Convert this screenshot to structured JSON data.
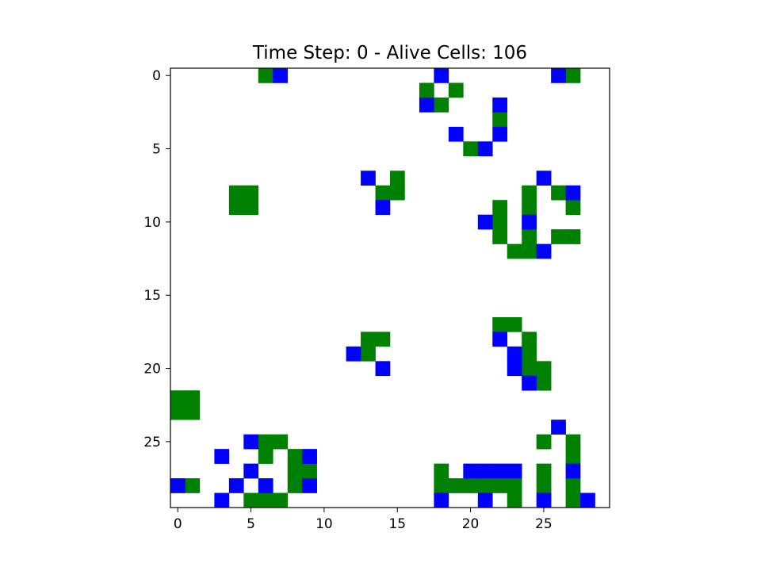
{
  "chart_data": {
    "type": "heatmap",
    "title": "Time Step: 0 - Alive Cells: 106",
    "grid_size": 30,
    "xlim": [
      -0.5,
      29.5
    ],
    "ylim": [
      29.5,
      -0.5
    ],
    "x_ticks": [
      0,
      5,
      10,
      15,
      20,
      25
    ],
    "y_ticks": [
      0,
      5,
      10,
      15,
      20,
      25
    ],
    "grid": false,
    "colors": {
      "background": "#ffffff",
      "green": "#008000",
      "blue": "#0000ff"
    },
    "cells": {
      "green": [
        [
          0,
          6
        ],
        [
          0,
          27
        ],
        [
          1,
          17
        ],
        [
          1,
          19
        ],
        [
          2,
          18
        ],
        [
          3,
          22
        ],
        [
          5,
          20
        ],
        [
          7,
          15
        ],
        [
          8,
          14
        ],
        [
          8,
          15
        ],
        [
          8,
          4
        ],
        [
          8,
          5
        ],
        [
          9,
          4
        ],
        [
          9,
          5
        ],
        [
          8,
          24
        ],
        [
          8,
          26
        ],
        [
          9,
          22
        ],
        [
          9,
          24
        ],
        [
          9,
          27
        ],
        [
          10,
          22
        ],
        [
          11,
          22
        ],
        [
          11,
          24
        ],
        [
          11,
          26
        ],
        [
          11,
          27
        ],
        [
          12,
          23
        ],
        [
          12,
          24
        ],
        [
          17,
          22
        ],
        [
          17,
          23
        ],
        [
          18,
          13
        ],
        [
          18,
          14
        ],
        [
          18,
          24
        ],
        [
          19,
          13
        ],
        [
          19,
          24
        ],
        [
          20,
          24
        ],
        [
          20,
          25
        ],
        [
          21,
          25
        ],
        [
          22,
          0
        ],
        [
          22,
          1
        ],
        [
          23,
          0
        ],
        [
          23,
          1
        ],
        [
          25,
          6
        ],
        [
          25,
          7
        ],
        [
          25,
          25
        ],
        [
          25,
          27
        ],
        [
          26,
          6
        ],
        [
          26,
          8
        ],
        [
          26,
          27
        ],
        [
          27,
          8
        ],
        [
          27,
          9
        ],
        [
          27,
          18
        ],
        [
          27,
          25
        ],
        [
          28,
          1
        ],
        [
          28,
          8
        ],
        [
          28,
          18
        ],
        [
          28,
          19
        ],
        [
          28,
          20
        ],
        [
          28,
          21
        ],
        [
          28,
          22
        ],
        [
          28,
          23
        ],
        [
          28,
          25
        ],
        [
          28,
          27
        ],
        [
          29,
          5
        ],
        [
          29,
          6
        ],
        [
          29,
          7
        ],
        [
          29,
          23
        ],
        [
          29,
          27
        ]
      ],
      "blue": [
        [
          0,
          7
        ],
        [
          0,
          18
        ],
        [
          0,
          26
        ],
        [
          2,
          17
        ],
        [
          2,
          22
        ],
        [
          4,
          19
        ],
        [
          4,
          22
        ],
        [
          5,
          21
        ],
        [
          7,
          13
        ],
        [
          7,
          25
        ],
        [
          8,
          27
        ],
        [
          9,
          14
        ],
        [
          10,
          21
        ],
        [
          10,
          24
        ],
        [
          12,
          25
        ],
        [
          18,
          22
        ],
        [
          19,
          12
        ],
        [
          19,
          23
        ],
        [
          20,
          14
        ],
        [
          20,
          23
        ],
        [
          21,
          24
        ],
        [
          24,
          26
        ],
        [
          25,
          5
        ],
        [
          26,
          3
        ],
        [
          26,
          9
        ],
        [
          27,
          5
        ],
        [
          27,
          20
        ],
        [
          27,
          21
        ],
        [
          27,
          22
        ],
        [
          27,
          23
        ],
        [
          27,
          27
        ],
        [
          28,
          0
        ],
        [
          28,
          4
        ],
        [
          28,
          6
        ],
        [
          28,
          9
        ],
        [
          29,
          3
        ],
        [
          29,
          18
        ],
        [
          29,
          21
        ],
        [
          29,
          25
        ],
        [
          29,
          28
        ]
      ]
    }
  }
}
